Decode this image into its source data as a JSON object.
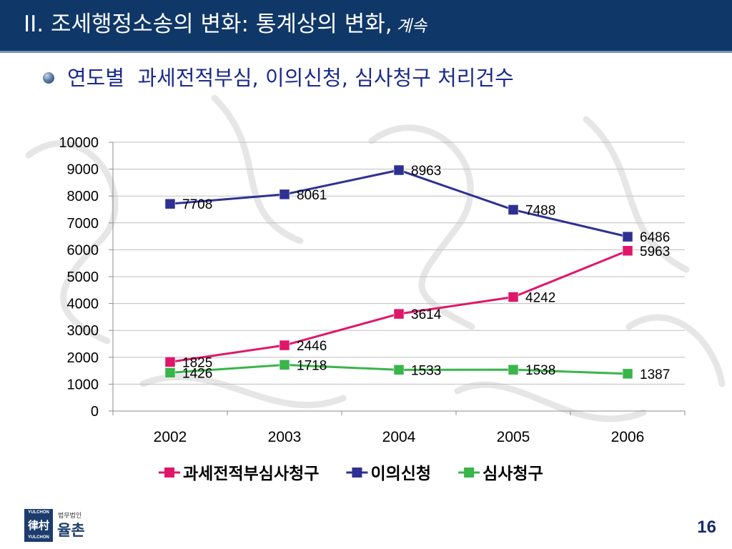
{
  "header": {
    "title": "II. 조세행정소송의 변화: 통계상의 변화,",
    "continued": "계속"
  },
  "subtitle": "연도별  과세전적부심, 이의신청, 심사청구 처리건수",
  "chart_data": {
    "type": "line",
    "categories": [
      "2002",
      "2003",
      "2004",
      "2005",
      "2006"
    ],
    "ylim": [
      0,
      10000
    ],
    "yticks": [
      0,
      1000,
      2000,
      3000,
      4000,
      5000,
      6000,
      7000,
      8000,
      9000,
      10000
    ],
    "grid": true,
    "legend_position": "bottom",
    "series": [
      {
        "name": "과세전적부심사청구",
        "color": "#e0166a",
        "values": [
          1825,
          2446,
          3614,
          4242,
          5963
        ]
      },
      {
        "name": "이의신청",
        "color": "#2e3192",
        "values": [
          7708,
          8061,
          8963,
          7488,
          6486
        ]
      },
      {
        "name": "심사청구",
        "color": "#39b54a",
        "values": [
          1426,
          1718,
          1533,
          1538,
          1387
        ]
      }
    ]
  },
  "logo": {
    "en_top": "YULCHON",
    "en_bottom": "YULCHON",
    "seal": "律村",
    "small": "법무법인",
    "big": "율촌"
  },
  "page_number": "16"
}
